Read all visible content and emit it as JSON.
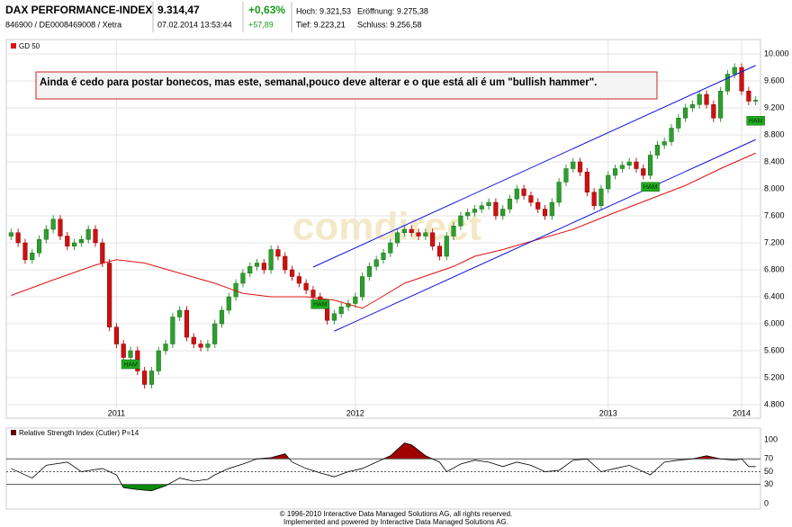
{
  "header": {
    "name": "DAX PERFORMANCE-INDEX",
    "id": "846900 / DE0008469008 / Xetra",
    "price": "9.314,47",
    "datetime": "07.02.2014 13:53:44",
    "change_pct": "+0,63%",
    "change_abs": "+57,89",
    "high": "Hoch: 9.321,53",
    "open": "Eröffnung: 9.275,38",
    "low": "Tief: 9.223,21",
    "close": "Schluss: 9.256,58"
  },
  "chart_data": [
    {
      "type": "candlestick",
      "watermark": "comdirect",
      "comment": "Ainda é cedo para postar bonecos, mas este, semanal,pouco deve alterar e o que está ali é um \"bullish hammer\".",
      "up_color": "#2e9e2e",
      "down_color": "#cc1111",
      "open": [
        7300,
        7350,
        7200,
        6950,
        7050,
        7250,
        7400,
        7550,
        7300,
        7150,
        7200,
        7250,
        7400,
        7200,
        6900,
        5950,
        5700,
        5500,
        5600,
        5300,
        5100,
        5300,
        5600,
        5700,
        6100,
        6200,
        5800,
        5700,
        5650,
        5700,
        6000,
        6200,
        6400,
        6600,
        6750,
        6850,
        6900,
        6800,
        7100,
        7000,
        6800,
        6700,
        6600,
        6500,
        6400,
        6300,
        6050,
        6150,
        6250,
        6300,
        6400,
        6700,
        6850,
        6950,
        7050,
        7200,
        7350,
        7400,
        7350,
        7300,
        7350,
        7150,
        7000,
        7300,
        7450,
        7600,
        7650,
        7700,
        7750,
        7800,
        7600,
        7700,
        7850,
        8000,
        7900,
        7800,
        7700,
        7600,
        7800,
        8100,
        8300,
        8400,
        8250,
        7950,
        7750,
        8000,
        8200,
        8300,
        8350,
        8400,
        8300,
        8200,
        8500,
        8650,
        8700,
        8900,
        9050,
        9200,
        9250,
        9400,
        9250,
        9050,
        9450,
        9700,
        9800,
        9450,
        9300
      ],
      "high": [
        7410,
        7410,
        7260,
        7110,
        7310,
        7460,
        7610,
        7610,
        7360,
        7260,
        7310,
        7460,
        7460,
        7260,
        6960,
        6010,
        5760,
        5660,
        5660,
        5360,
        5360,
        5660,
        5760,
        6160,
        6260,
        6260,
        5860,
        5760,
        5760,
        6060,
        6260,
        6460,
        6660,
        6810,
        6910,
        6960,
        6960,
        7160,
        7160,
        7060,
        6860,
        6760,
        6660,
        6560,
        6460,
        6360,
        6210,
        6310,
        6360,
        6460,
        6760,
        6910,
        7010,
        7110,
        7260,
        7410,
        7460,
        7460,
        7410,
        7410,
        7410,
        7210,
        7360,
        7510,
        7660,
        7710,
        7760,
        7810,
        7860,
        7860,
        7760,
        7910,
        8060,
        8060,
        7960,
        7860,
        7760,
        7860,
        8160,
        8360,
        8460,
        8460,
        8310,
        8010,
        8060,
        8260,
        8360,
        8410,
        8460,
        8460,
        8360,
        8560,
        8710,
        8760,
        8960,
        9110,
        9260,
        9310,
        9460,
        9460,
        9310,
        9510,
        9760,
        9860,
        9860,
        9510,
        9374
      ],
      "low": [
        7240,
        7140,
        6890,
        6890,
        6990,
        7190,
        7340,
        7240,
        7090,
        7090,
        7140,
        7190,
        7140,
        6840,
        5890,
        5640,
        5440,
        5440,
        5240,
        5040,
        5040,
        5240,
        5540,
        5640,
        6040,
        5740,
        5640,
        5590,
        5590,
        5640,
        5940,
        6140,
        6340,
        6540,
        6690,
        6790,
        6740,
        6740,
        6940,
        6740,
        6640,
        6540,
        6440,
        6340,
        6240,
        5990,
        5990,
        6090,
        6190,
        6240,
        6340,
        6640,
        6790,
        6890,
        6990,
        7140,
        7290,
        7290,
        7240,
        7240,
        7090,
        6940,
        6940,
        7240,
        7390,
        7540,
        7590,
        7640,
        7690,
        7540,
        7540,
        7640,
        7790,
        7840,
        7740,
        7640,
        7540,
        7540,
        7740,
        8040,
        8240,
        8190,
        7890,
        7690,
        7690,
        7940,
        8140,
        8240,
        8290,
        8240,
        8140,
        8140,
        8440,
        8590,
        8640,
        8840,
        8990,
        9140,
        9190,
        9190,
        8990,
        8990,
        9390,
        9640,
        9390,
        9240,
        9240
      ],
      "close": [
        7350,
        7200,
        6950,
        7050,
        7250,
        7400,
        7550,
        7300,
        7150,
        7200,
        7250,
        7400,
        7200,
        6900,
        5950,
        5700,
        5500,
        5600,
        5300,
        5100,
        5300,
        5600,
        5700,
        6100,
        6200,
        5800,
        5700,
        5650,
        5700,
        6000,
        6200,
        6400,
        6600,
        6750,
        6850,
        6900,
        6800,
        7100,
        7000,
        6800,
        6700,
        6600,
        6500,
        6400,
        6300,
        6050,
        6150,
        6250,
        6300,
        6400,
        6700,
        6850,
        6950,
        7050,
        7200,
        7350,
        7400,
        7350,
        7300,
        7350,
        7150,
        7000,
        7300,
        7450,
        7600,
        7650,
        7700,
        7750,
        7800,
        7600,
        7700,
        7850,
        8000,
        7900,
        7800,
        7700,
        7600,
        7800,
        8100,
        8300,
        8400,
        8250,
        7950,
        7750,
        8000,
        8200,
        8300,
        8350,
        8400,
        8300,
        8200,
        8500,
        8650,
        8700,
        8900,
        9050,
        9200,
        9250,
        9400,
        9250,
        9050,
        9450,
        9700,
        9800,
        9450,
        9300,
        9314
      ],
      "series": [
        {
          "name": "GD 50",
          "color": "#e01010",
          "x": [
            0,
            6,
            12,
            15,
            19,
            24,
            29,
            33,
            37,
            42,
            46,
            50,
            52,
            56,
            63,
            66,
            70,
            75,
            80,
            86,
            91,
            96,
            101,
            106
          ],
          "values": [
            6420,
            6650,
            6870,
            6950,
            6900,
            6750,
            6600,
            6450,
            6400,
            6400,
            6350,
            6230,
            6350,
            6600,
            6850,
            7000,
            7100,
            7250,
            7400,
            7650,
            7850,
            8050,
            8300,
            8530
          ]
        }
      ],
      "trendlines": [
        {
          "color": "#1010e0",
          "x": [
            43,
            106
          ],
          "values": [
            6840,
            9830
          ]
        },
        {
          "color": "#1010e0",
          "x": [
            46,
            106
          ],
          "values": [
            5890,
            8730
          ]
        }
      ],
      "annotations": [
        {
          "text": "HAM",
          "x": 17,
          "y": 5400
        },
        {
          "text": "HAM",
          "x": 44,
          "y": 6290
        },
        {
          "text": "HAM",
          "x": 91,
          "y": 8030
        },
        {
          "text": "HAM",
          "x": 106,
          "y": 9010
        }
      ],
      "xlim": [
        -0.3,
        106.3
      ],
      "xticks": [
        {
          "value": 15,
          "label": "2011"
        },
        {
          "value": 49,
          "label": "2012"
        },
        {
          "value": 85,
          "label": "2013"
        },
        {
          "value": 104,
          "label": "2014"
        }
      ],
      "ylim": [
        4700,
        10100
      ],
      "yticks": [
        {
          "value": 4800,
          "label": "4.800"
        },
        {
          "value": 5200,
          "label": "5.200"
        },
        {
          "value": 5600,
          "label": "5.600"
        },
        {
          "value": 6000,
          "label": "6.000"
        },
        {
          "value": 6400,
          "label": "6.400"
        },
        {
          "value": 6800,
          "label": "6.800"
        },
        {
          "value": 7200,
          "label": "7.200"
        },
        {
          "value": 7600,
          "label": "7.600"
        },
        {
          "value": 8000,
          "label": "8.000"
        },
        {
          "value": 8400,
          "label": "8.400"
        },
        {
          "value": 8800,
          "label": "8.800"
        },
        {
          "value": 9200,
          "label": "9.200"
        },
        {
          "value": 9600,
          "label": "9.600"
        },
        {
          "value": 10000,
          "label": "10.000"
        }
      ],
      "grid": true
    },
    {
      "type": "line",
      "title": "Relative Strength Index (Cutler) P=14",
      "color": "#000000",
      "x": [
        0,
        3,
        5,
        8,
        10,
        13,
        15,
        16,
        18,
        20,
        22,
        24,
        26,
        28,
        29,
        31,
        33,
        35,
        37,
        39,
        40,
        42,
        44,
        46,
        48,
        50,
        52,
        54,
        56,
        57,
        59,
        61,
        62,
        64,
        66,
        68,
        70,
        72,
        74,
        76,
        78,
        80,
        82,
        84,
        86,
        88,
        89,
        91,
        93,
        95,
        97,
        99,
        101,
        103,
        104,
        105,
        106
      ],
      "values": [
        55,
        40,
        60,
        65,
        50,
        55,
        45,
        25,
        22,
        20,
        28,
        40,
        35,
        38,
        45,
        55,
        62,
        70,
        72,
        78,
        65,
        55,
        48,
        42,
        50,
        55,
        65,
        75,
        95,
        92,
        75,
        65,
        50,
        62,
        68,
        65,
        58,
        65,
        60,
        50,
        52,
        68,
        70,
        50,
        55,
        60,
        55,
        45,
        65,
        68,
        70,
        75,
        70,
        68,
        70,
        58,
        58
      ],
      "overbought": 70,
      "oversold": 30,
      "midline": 50,
      "overbought_color": "#a00000",
      "oversold_color": "#0a8a0a",
      "xlim": [
        -0.3,
        106.3
      ],
      "ylim": [
        -8.5,
        115.5
      ],
      "yticks": [
        0,
        30,
        50,
        70,
        100
      ]
    }
  ],
  "footer": [
    "© 1996-2010 Interactive Data Managed Solutions AG, all rights reserved.",
    "Implemented and powered by Interactive Data Managed Solutions AG."
  ]
}
